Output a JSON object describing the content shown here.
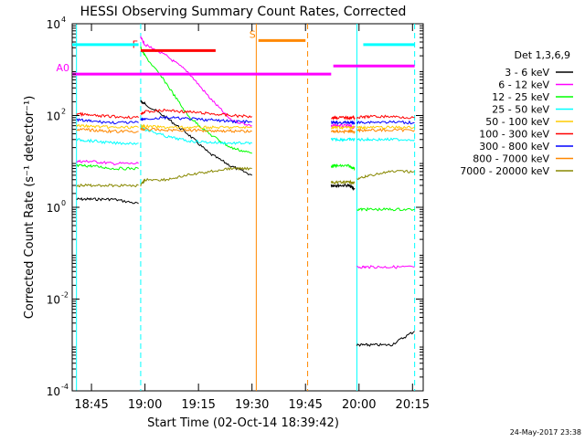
{
  "chart_data": {
    "type": "line",
    "title": "HESSI Observing Summary Count Rates, Corrected",
    "xlabel": "Start Time (02-Oct-14 18:39:42)",
    "ylabel": "Corrected Count Rate (s⁻¹ detector⁻¹)",
    "footer": "24-May-2017 23:38",
    "x_range_min": [
      18.66,
      20.3
    ],
    "y_scale": "log",
    "ylim": [
      0.0001,
      10000
    ],
    "x_ticks": [
      {
        "label": "18:45",
        "t": 18.75
      },
      {
        "label": "19:00",
        "t": 19.0
      },
      {
        "label": "19:15",
        "t": 19.25
      },
      {
        "label": "19:30",
        "t": 19.5
      },
      {
        "label": "19:45",
        "t": 19.75
      },
      {
        "label": "20:00",
        "t": 20.0
      },
      {
        "label": "20:15",
        "t": 20.25
      }
    ],
    "y_ticks": [
      {
        "value": 10000,
        "mant": "10",
        "exp": "4"
      },
      {
        "value": 100,
        "mant": "10",
        "exp": "2"
      },
      {
        "value": 1,
        "mant": "10",
        "exp": "0"
      },
      {
        "value": 0.01,
        "mant": "10",
        "exp": "-2"
      },
      {
        "value": 0.0001,
        "mant": "10",
        "exp": "-4"
      }
    ],
    "legend": {
      "placement": "right",
      "title": "Det 1,3,6,9",
      "entries": [
        {
          "label": "3 - 6 keV",
          "color": "#000000"
        },
        {
          "label": "6 - 12 keV",
          "color": "#ff00ff"
        },
        {
          "label": "12 - 25 keV",
          "color": "#00ff00"
        },
        {
          "label": "25 - 50 keV",
          "color": "#00ffff"
        },
        {
          "label": "50 - 100 keV",
          "color": "#ffcc00"
        },
        {
          "label": "100 - 300 keV",
          "color": "#ff0000"
        },
        {
          "label": "300 - 800 keV",
          "color": "#0000ff"
        },
        {
          "label": "800 - 7000 keV",
          "color": "#ff8800"
        },
        {
          "label": "7000 - 20000 keV",
          "color": "#888800"
        }
      ]
    },
    "flag_bars": [
      {
        "label": "F",
        "color": "#ff0000",
        "t_start": 18.98,
        "t_end": 19.33,
        "level": 2600
      },
      {
        "label": "S",
        "color": "#ff8800",
        "t_start": 19.53,
        "t_end": 19.75,
        "level": 4300
      },
      {
        "label": "A0",
        "color": "#ff00ff",
        "t_start": 18.66,
        "t_end": 19.87,
        "level": 800
      },
      {
        "label": "",
        "color": "#ff00ff",
        "t_start": 19.88,
        "t_end": 20.26,
        "level": 1200
      },
      {
        "label": "",
        "color": "#00ffff",
        "t_start": 18.66,
        "t_end": 18.97,
        "level": 3500
      },
      {
        "label": "",
        "color": "#00ffff",
        "t_start": 20.02,
        "t_end": 20.26,
        "level": 3500
      }
    ],
    "vlines": [
      {
        "t": 18.68,
        "color": "#00ffff",
        "style": "solid"
      },
      {
        "t": 18.98,
        "color": "#00ffff",
        "style": "dashed"
      },
      {
        "t": 19.52,
        "color": "#ff8800",
        "style": "solid"
      },
      {
        "t": 19.76,
        "color": "#ff8800",
        "style": "dashed"
      },
      {
        "t": 19.99,
        "color": "#00ffff",
        "style": "solid"
      },
      {
        "t": 20.26,
        "color": "#00ffff",
        "style": "dashed"
      }
    ],
    "series": [
      {
        "name": "3 - 6 keV",
        "color": "#000000",
        "segments": [
          {
            "t": [
              18.68,
              18.75,
              18.85,
              18.97
            ],
            "y": [
              1.5,
              1.5,
              1.5,
              1.2
            ]
          },
          {
            "t": [
              18.98,
              19.0,
              19.1,
              19.2,
              19.3,
              19.4,
              19.5
            ],
            "y": [
              200,
              180,
              90,
              40,
              15,
              8,
              5
            ]
          },
          {
            "t": [
              19.87,
              19.9,
              19.95,
              19.98
            ],
            "y": [
              3,
              3,
              3,
              2.5
            ]
          },
          {
            "t": [
              19.99,
              20.05,
              20.15,
              20.26
            ],
            "y": [
              0.001,
              0.001,
              0.001,
              0.002
            ]
          }
        ]
      },
      {
        "name": "6 - 12 keV",
        "color": "#ff00ff",
        "segments": [
          {
            "t": [
              18.68,
              18.75,
              18.85,
              18.97
            ],
            "y": [
              10,
              10,
              9,
              9
            ]
          },
          {
            "t": [
              18.98,
              19.0,
              19.1,
              19.2,
              19.3,
              19.4,
              19.5
            ],
            "y": [
              5000,
              3500,
              2000,
              900,
              250,
              80,
              60
            ]
          },
          {
            "t": [
              19.87,
              19.9,
              19.95,
              19.98
            ],
            "y": [
              60,
              60,
              60,
              55
            ]
          },
          {
            "t": [
              19.99,
              20.05,
              20.15,
              20.26
            ],
            "y": [
              0.05,
              0.05,
              0.05,
              0.05
            ]
          }
        ]
      },
      {
        "name": "12 - 25 keV",
        "color": "#00ff00",
        "segments": [
          {
            "t": [
              18.68,
              18.75,
              18.85,
              18.97
            ],
            "y": [
              8,
              8,
              7,
              7
            ]
          },
          {
            "t": [
              18.98,
              19.0,
              19.1,
              19.2,
              19.3,
              19.4,
              19.5
            ],
            "y": [
              3000,
              2000,
              500,
              100,
              40,
              20,
              15
            ]
          },
          {
            "t": [
              19.87,
              19.9,
              19.95,
              19.98
            ],
            "y": [
              8,
              8,
              8,
              7
            ]
          },
          {
            "t": [
              19.99,
              20.05,
              20.15,
              20.26
            ],
            "y": [
              0.9,
              0.9,
              0.9,
              0.9
            ]
          }
        ]
      },
      {
        "name": "25 - 50 keV",
        "color": "#00ffff",
        "segments": [
          {
            "t": [
              18.68,
              18.75,
              18.85,
              18.97
            ],
            "y": [
              30,
              28,
              25,
              25
            ]
          },
          {
            "t": [
              18.98,
              19.0,
              19.1,
              19.2,
              19.3,
              19.4,
              19.5
            ],
            "y": [
              60,
              50,
              35,
              28,
              26,
              25,
              25
            ]
          },
          {
            "t": [
              19.87,
              19.9,
              19.95,
              19.98
            ],
            "y": [
              30,
              30,
              30,
              30
            ]
          },
          {
            "t": [
              19.99,
              20.05,
              20.15,
              20.26
            ],
            "y": [
              30,
              30,
              30,
              30
            ]
          }
        ]
      },
      {
        "name": "50 - 100 keV",
        "color": "#ffcc00",
        "segments": [
          {
            "t": [
              18.68,
              18.75,
              18.85,
              18.97
            ],
            "y": [
              60,
              58,
              55,
              55
            ]
          },
          {
            "t": [
              18.98,
              19.0,
              19.1,
              19.2,
              19.3,
              19.4,
              19.5
            ],
            "y": [
              60,
              58,
              55,
              55,
              55,
              55,
              55
            ]
          },
          {
            "t": [
              19.87,
              19.9,
              19.95,
              19.98
            ],
            "y": [
              55,
              55,
              55,
              55
            ]
          },
          {
            "t": [
              19.99,
              20.05,
              20.15,
              20.26
            ],
            "y": [
              55,
              55,
              55,
              55
            ]
          }
        ]
      },
      {
        "name": "100 - 300 keV",
        "color": "#ff0000",
        "segments": [
          {
            "t": [
              18.68,
              18.75,
              18.85,
              18.97
            ],
            "y": [
              110,
              100,
              95,
              90
            ]
          },
          {
            "t": [
              18.98,
              19.0,
              19.1,
              19.2,
              19.3,
              19.4,
              19.5
            ],
            "y": [
              110,
              120,
              130,
              120,
              110,
              100,
              95
            ]
          },
          {
            "t": [
              19.87,
              19.9,
              19.95,
              19.98
            ],
            "y": [
              90,
              90,
              90,
              90
            ]
          },
          {
            "t": [
              19.99,
              20.05,
              20.15,
              20.26
            ],
            "y": [
              90,
              95,
              95,
              90
            ]
          }
        ]
      },
      {
        "name": "300 - 800 keV",
        "color": "#0000ff",
        "segments": [
          {
            "t": [
              18.68,
              18.75,
              18.85,
              18.97
            ],
            "y": [
              80,
              75,
              70,
              70
            ]
          },
          {
            "t": [
              18.98,
              19.0,
              19.1,
              19.2,
              19.3,
              19.4,
              19.5
            ],
            "y": [
              80,
              85,
              90,
              85,
              80,
              75,
              72
            ]
          },
          {
            "t": [
              19.87,
              19.9,
              19.95,
              19.98
            ],
            "y": [
              70,
              70,
              70,
              70
            ]
          },
          {
            "t": [
              19.99,
              20.05,
              20.15,
              20.26
            ],
            "y": [
              70,
              72,
              72,
              70
            ]
          }
        ]
      },
      {
        "name": "800 - 7000 keV",
        "color": "#ff8800",
        "segments": [
          {
            "t": [
              18.68,
              18.75,
              18.85,
              18.97
            ],
            "y": [
              50,
              48,
              45,
              45
            ]
          },
          {
            "t": [
              18.98,
              19.0,
              19.1,
              19.2,
              19.3,
              19.4,
              19.5
            ],
            "y": [
              50,
              50,
              48,
              48,
              47,
              46,
              45
            ]
          },
          {
            "t": [
              19.87,
              19.9,
              19.95,
              19.98
            ],
            "y": [
              45,
              45,
              45,
              45
            ]
          },
          {
            "t": [
              19.99,
              20.05,
              20.15,
              20.26
            ],
            "y": [
              48,
              48,
              48,
              48
            ]
          }
        ]
      },
      {
        "name": "7000 - 20000 keV",
        "color": "#888800",
        "segments": [
          {
            "t": [
              18.68,
              18.75,
              18.85,
              18.97
            ],
            "y": [
              3,
              3,
              3,
              3
            ]
          },
          {
            "t": [
              18.98,
              19.0,
              19.1,
              19.2,
              19.3,
              19.4,
              19.5
            ],
            "y": [
              3,
              4,
              4,
              5,
              6,
              7,
              7
            ]
          },
          {
            "t": [
              19.87,
              19.9,
              19.95,
              19.98
            ],
            "y": [
              3.5,
              3.5,
              3.5,
              3.5
            ]
          },
          {
            "t": [
              19.99,
              20.05,
              20.15,
              20.26
            ],
            "y": [
              4,
              5,
              6,
              6
            ]
          }
        ]
      }
    ]
  }
}
